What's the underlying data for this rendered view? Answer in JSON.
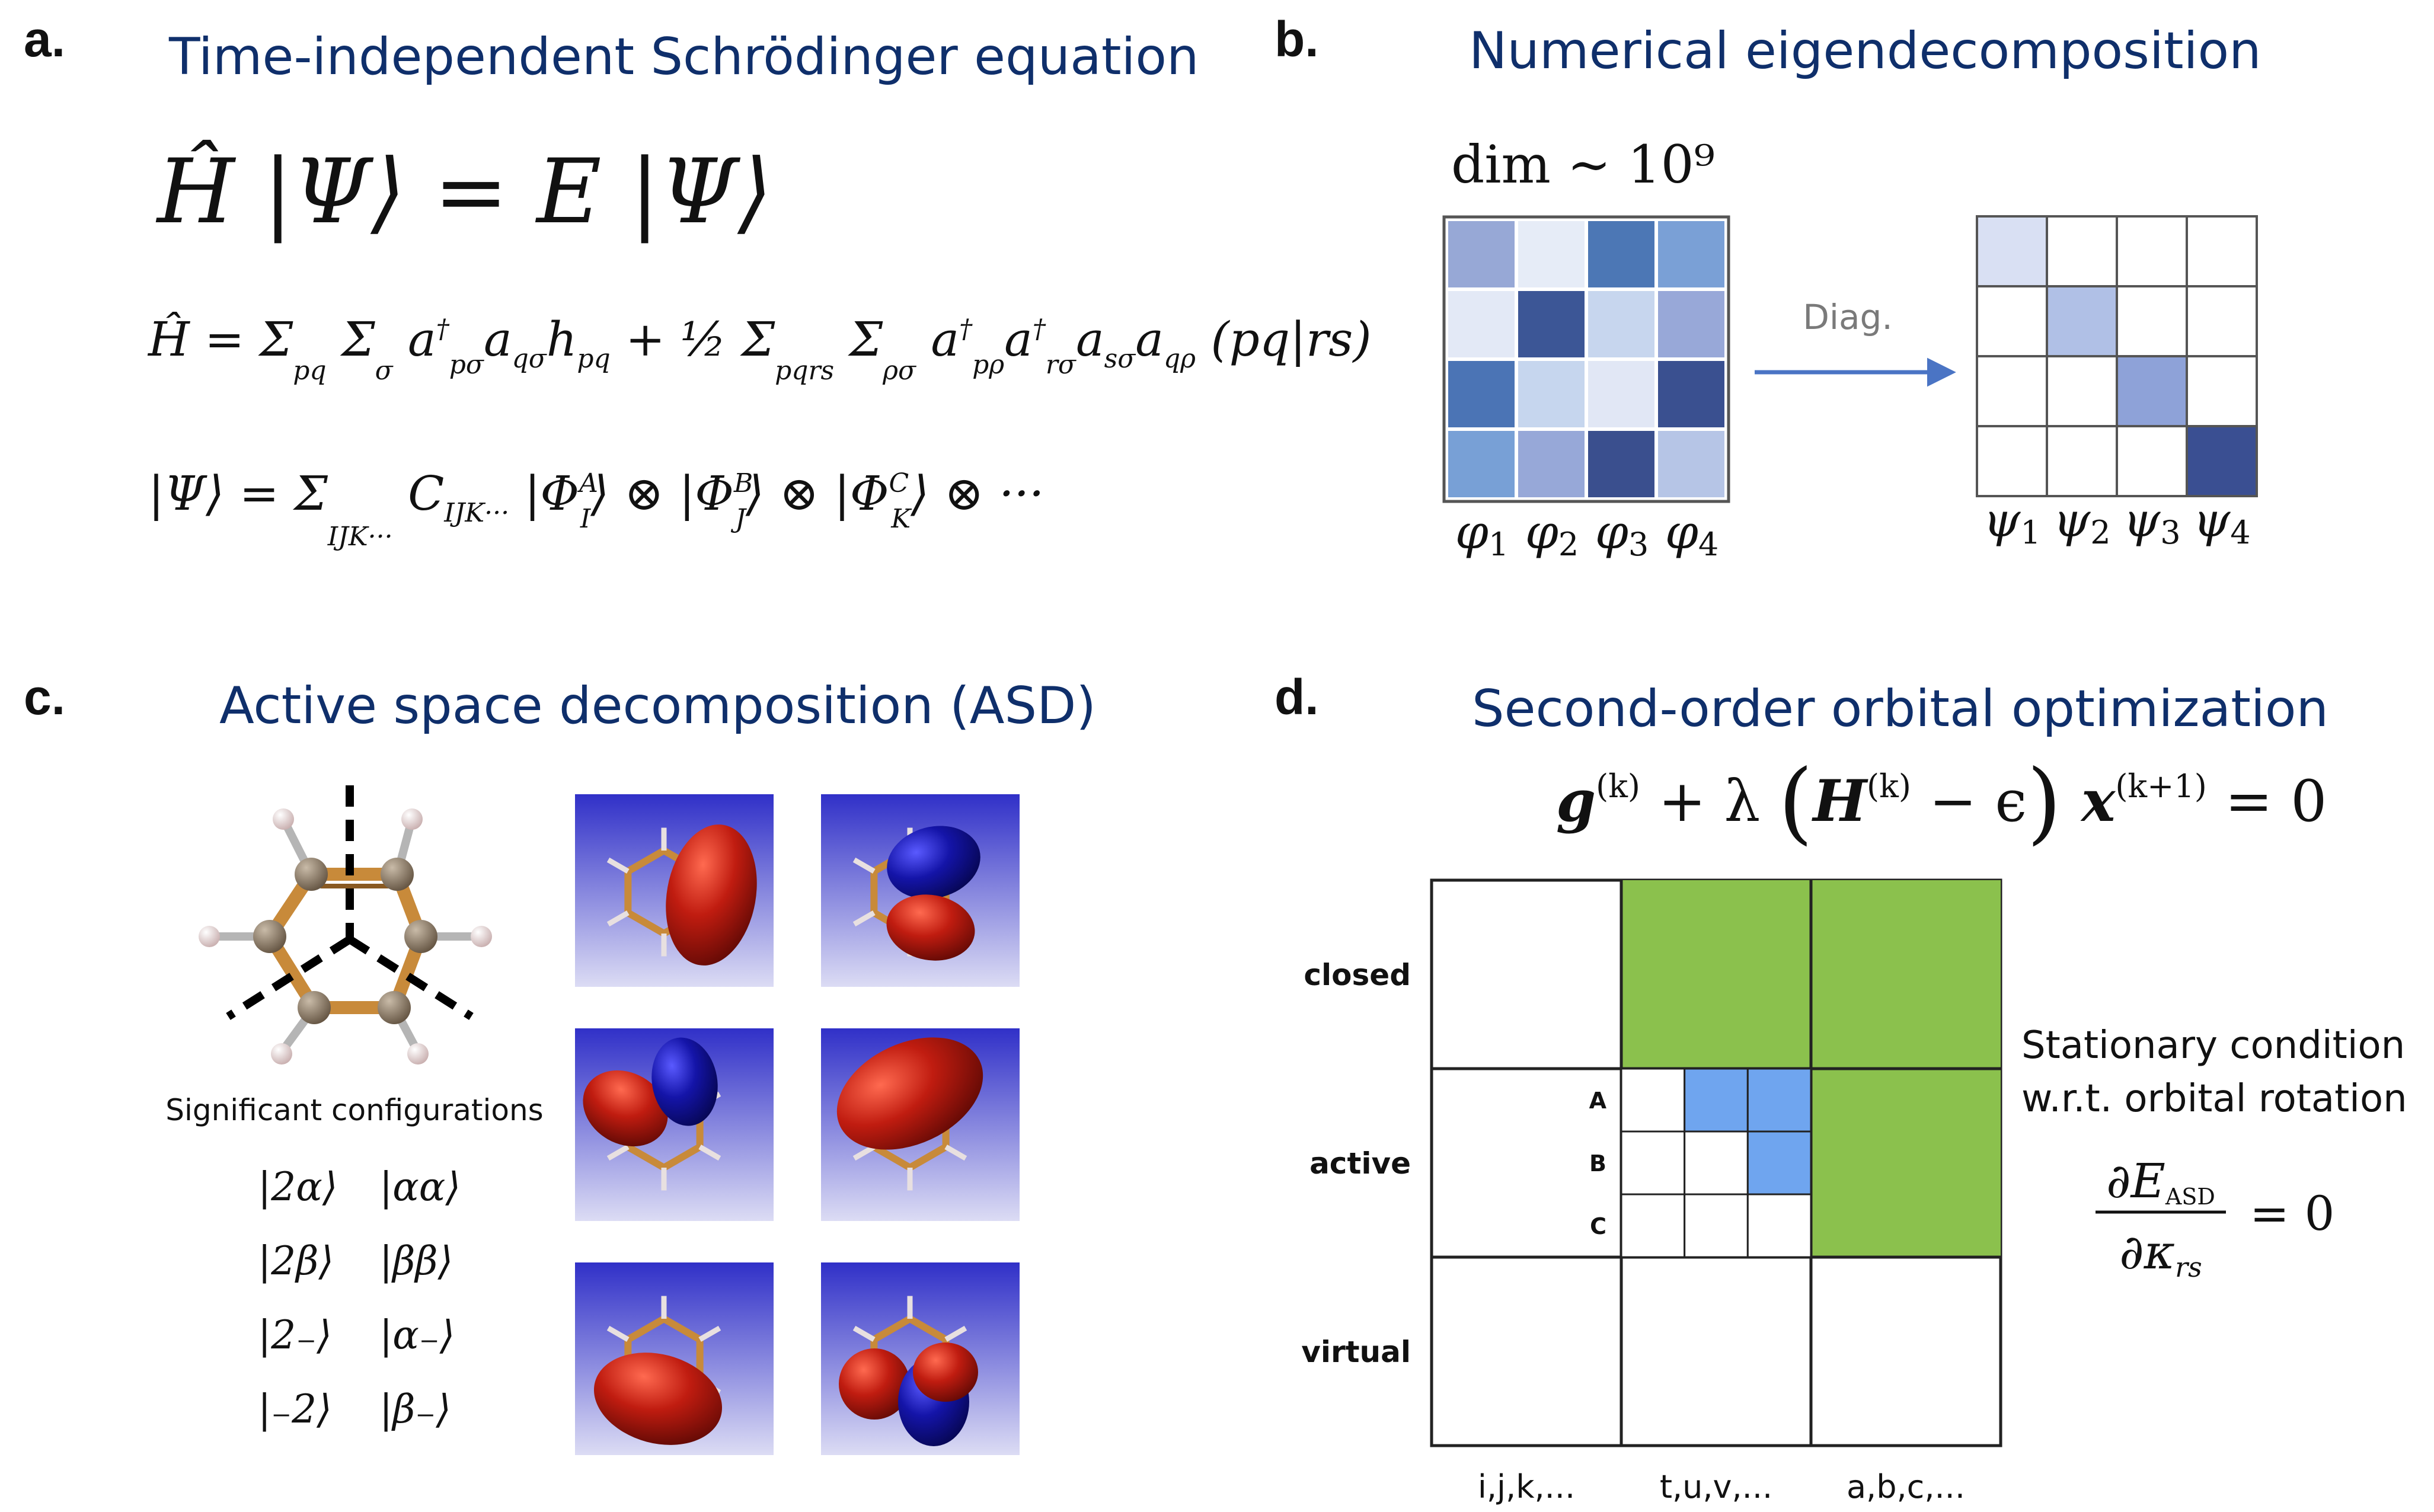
{
  "panel_a": {
    "label": "a.",
    "title": "Time-independent Schrödinger equation",
    "equation_1": "Ĥ |Ψ⟩ = E |Ψ⟩",
    "equation_2": "Ĥ = Σpq Σσ a†pσ aqσ hpq + ½ Σpqrs Σρσ a†pρ a†rσ asσ aqρ (pq|rs)",
    "equation_3": "|Ψ⟩ = ΣIJK··· CIJK··· |ΦAI⟩ ⊗ |ΦBJ⟩ ⊗ |ΦCK⟩ ⊗ ···"
  },
  "panel_b": {
    "label": "b.",
    "title": "Numerical eigendecomposition",
    "dim_label": "dim ∼ 10⁹",
    "arrow_label": "Diag.",
    "matrix_colors": [
      [
        "#97a8d6",
        "#e6ecf7",
        "#4c77b5",
        "#7aa0d6"
      ],
      [
        "#e3e9f6",
        "#3c5696",
        "#c7d6ee",
        "#98a8d8"
      ],
      [
        "#4b74b5",
        "#c6d6ee",
        "#e1e7f5",
        "#3a5090"
      ],
      [
        "#78a0d6",
        "#97a8d8",
        "#3a4f8e",
        "#b6c5e6"
      ]
    ],
    "diag_colors": [
      "#d9e0f3",
      "#b0c0e6",
      "#8ea2d8",
      "#3a4f92"
    ],
    "basis_labels": [
      "φ1",
      "φ2",
      "φ3",
      "φ4"
    ],
    "eigen_labels": [
      "ψ1",
      "ψ2",
      "ψ3",
      "ψ4"
    ]
  },
  "panel_c": {
    "label": "c.",
    "title": "Active space decomposition (ASD)",
    "configs_heading": "Significant configurations",
    "configurations": [
      [
        "|2α⟩",
        "|αα⟩"
      ],
      [
        "|2β⟩",
        "|ββ⟩"
      ],
      [
        "|2₋⟩",
        "|α₋⟩"
      ],
      [
        "|₋2⟩",
        "|β₋⟩"
      ]
    ],
    "orbital_images": [
      "orbital-1-icon",
      "orbital-2-icon",
      "orbital-3-icon",
      "orbital-4-icon",
      "orbital-5-icon",
      "orbital-6-icon"
    ],
    "colors": {
      "lobe_red": "#b01a10",
      "lobe_blue": "#1a1a9a",
      "bond": "#c88a3a",
      "atom_c": "#8a7a66",
      "atom_h": "#e6d6d6"
    }
  },
  "panel_d": {
    "label": "d.",
    "title": "Second-order orbital optimization",
    "equation": "g(k) + λ (H(k) − ε) x(k+1) = 0",
    "row_labels": [
      "closed",
      "active",
      "virtual"
    ],
    "sub_labels": [
      "A",
      "B",
      "C"
    ],
    "col_labels": [
      "i,j,k,...",
      "t,u,v,...",
      "a,b,c,..."
    ],
    "side_text_1": "Stationary condition",
    "side_text_2": "w.r.t. orbital rotation",
    "side_equation": "∂E_ASD / ∂κ_rs = 0",
    "colors": {
      "green": "#8bc14d",
      "blue": "#6fa5ef"
    }
  }
}
